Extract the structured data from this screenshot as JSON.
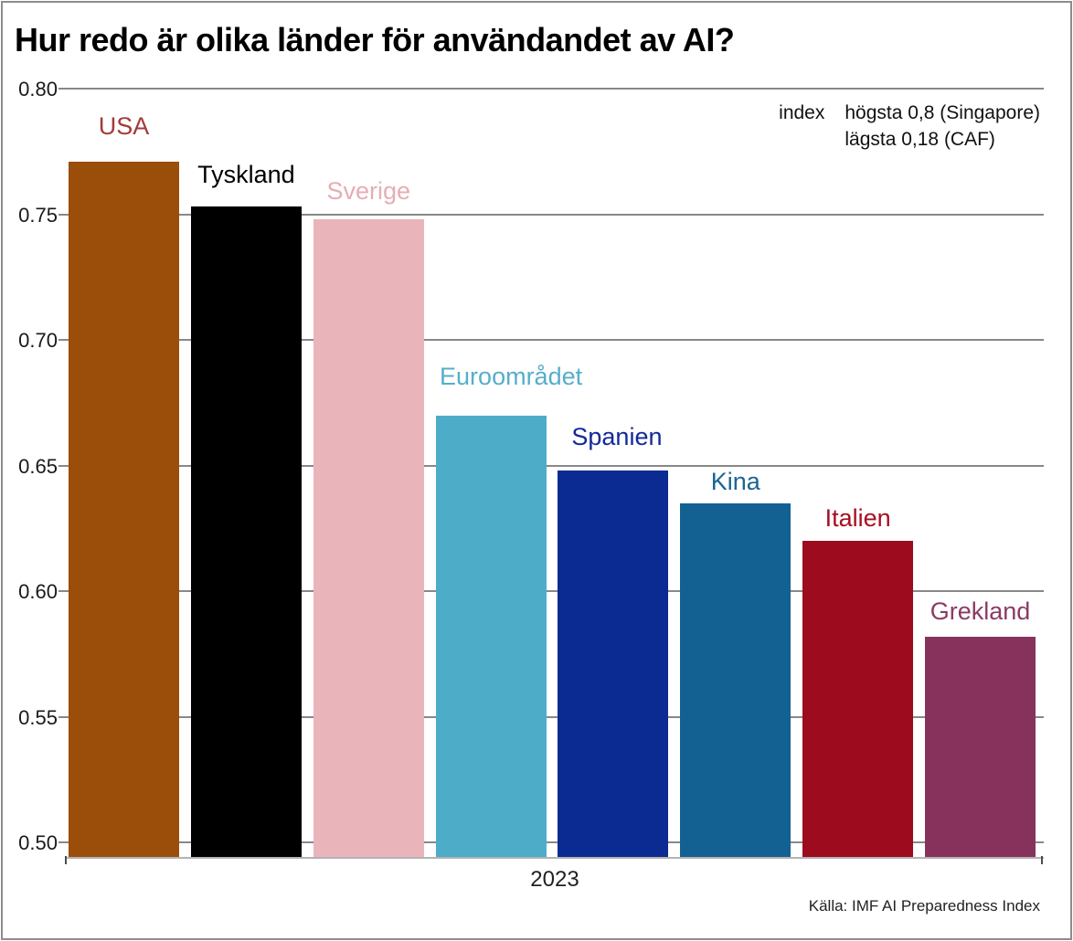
{
  "title": "Hur redo är olika länder för användandet av AI?",
  "annotation": {
    "label": "index",
    "line1": "högsta 0,8 (Singapore)",
    "line2": "lägsta 0,18 (CAF)"
  },
  "source": "Källa: IMF AI Preparedness Index",
  "chart_data": {
    "type": "bar",
    "title": "Hur redo är olika länder för användandet av AI?",
    "categories": [
      "USA",
      "Tyskland",
      "Sverige",
      "Euroområdet",
      "Spanien",
      "Kina",
      "Italien",
      "Grekland"
    ],
    "values": [
      0.771,
      0.753,
      0.748,
      0.67,
      0.648,
      0.635,
      0.62,
      0.582
    ],
    "bar_colors": [
      "#9B4D0A",
      "#000000",
      "#E9B5BA",
      "#4DADC9",
      "#0B2B92",
      "#136192",
      "#9C0B1E",
      "#87325C"
    ],
    "label_colors": [
      "#A33B38",
      "#000000",
      "#E5AEB3",
      "#56AECB",
      "#12299B",
      "#1A6494",
      "#A50F22",
      "#8C3A64"
    ],
    "x_tick_label": "2023",
    "xlabel": "",
    "ylabel": "",
    "ylim": [
      0.494,
      0.8
    ],
    "yticks": [
      0.5,
      0.55,
      0.6,
      0.65,
      0.7,
      0.75,
      0.8
    ],
    "ytick_labels": [
      "0.50",
      "0.55",
      "0.60",
      "0.65",
      "0.70",
      "0.75",
      "0.80"
    ],
    "grid": true,
    "gridline_color": "#888888",
    "axis_color": "#b3b3b3",
    "legend": "none",
    "annotation_text": "index  högsta 0,8 (Singapore)  lägsta 0,18 (CAF)",
    "source_text": "Källa: IMF AI Preparedness Index"
  }
}
